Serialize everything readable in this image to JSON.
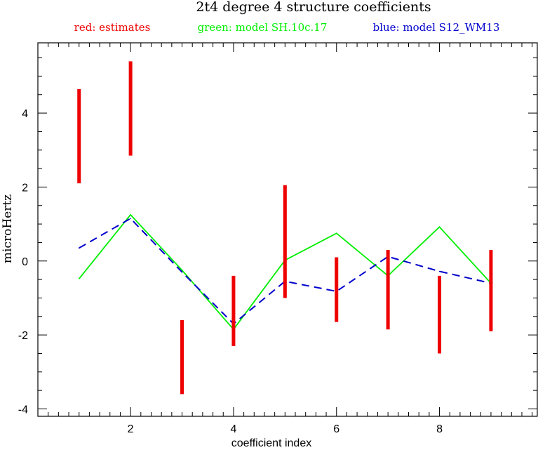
{
  "chart_data": {
    "type": "line",
    "title": "2t4 degree 4 structure coefficients",
    "xlabel": "coefficient index",
    "ylabel": "microHertz",
    "xlim": [
      0.2,
      9.9
    ],
    "ylim": [
      -4.2,
      5.9
    ],
    "x_major_ticks": [
      2,
      4,
      6,
      8
    ],
    "x_minor_step": 0.2,
    "y_major_ticks": [
      -4,
      -2,
      0,
      2,
      4
    ],
    "y_minor_step": 0.5,
    "grid": false,
    "legend_placement": "top",
    "legend": [
      {
        "key": "estimates",
        "label": "red: estimates",
        "color": "#ee0000"
      },
      {
        "key": "sh",
        "label": "green: model SH.10c.17",
        "color": "#00ee00"
      },
      {
        "key": "s12",
        "label": "blue: model S12_WM13",
        "color": "#0000cc"
      }
    ],
    "estimates": {
      "type": "error-interval",
      "color": "#ee0000",
      "x": [
        1,
        2,
        3,
        4,
        5,
        6,
        7,
        8,
        9
      ],
      "low": [
        2.1,
        2.85,
        -3.6,
        -2.3,
        -1.0,
        -1.65,
        -1.85,
        -2.5,
        -1.9
      ],
      "high": [
        4.65,
        5.4,
        -1.6,
        -0.4,
        2.05,
        0.1,
        0.3,
        -0.4,
        0.3
      ]
    },
    "series": [
      {
        "key": "sh",
        "color": "#00ee00",
        "style": "solid",
        "x": [
          1,
          2,
          3,
          4,
          5,
          6,
          7,
          8,
          9
        ],
        "values": [
          -0.48,
          1.25,
          -0.25,
          -1.85,
          0.02,
          0.75,
          -0.4,
          0.92,
          -0.6
        ]
      },
      {
        "key": "s12",
        "color": "#0000cc",
        "style": "dashed",
        "x": [
          1,
          2,
          3,
          4,
          5,
          6,
          7,
          8,
          9
        ],
        "values": [
          0.35,
          1.15,
          -0.3,
          -1.7,
          -0.55,
          -0.82,
          0.12,
          -0.28,
          -0.6
        ]
      }
    ]
  }
}
